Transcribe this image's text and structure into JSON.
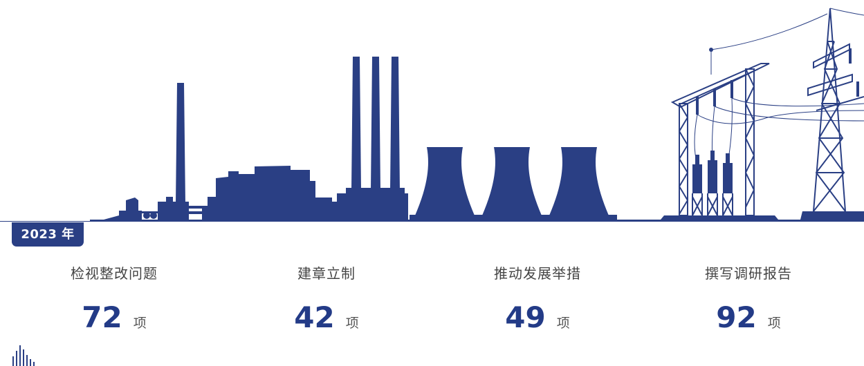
{
  "year_label": "2023 年",
  "stats": [
    {
      "label": "检视整改问题",
      "value": "72",
      "unit": "项"
    },
    {
      "label": "建章立制",
      "value": "42",
      "unit": "项"
    },
    {
      "label": "推动发展举措",
      "value": "49",
      "unit": "项"
    },
    {
      "label": "撰写调研报告",
      "value": "92",
      "unit": "项"
    }
  ],
  "colors": {
    "primary": "#2a3f84",
    "number": "#233b87"
  },
  "icons": [
    "power-plant-skyline-illustration",
    "bar-logo-icon"
  ]
}
